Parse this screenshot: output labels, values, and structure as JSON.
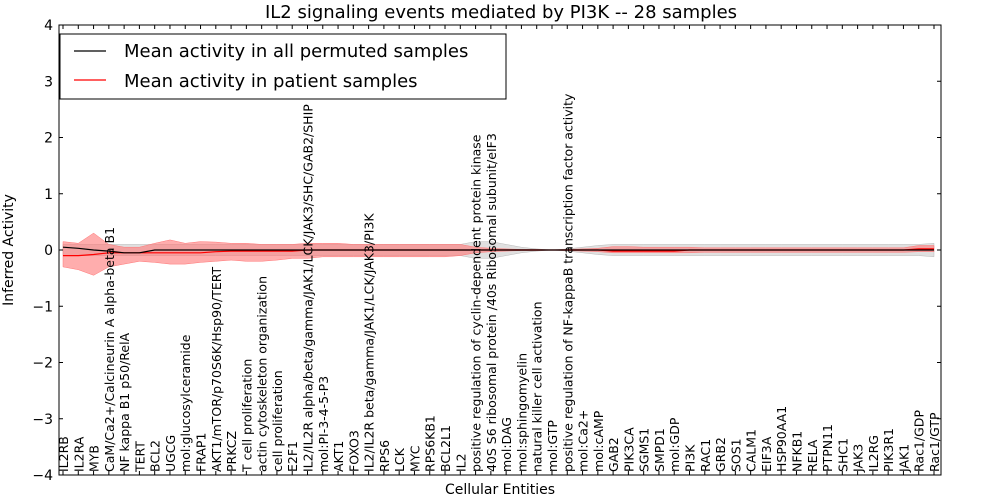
{
  "chart_data": {
    "type": "line",
    "title": "IL2 signaling events mediated by PI3K -- 28 samples",
    "xlabel": "Cellular Entities",
    "ylabel": "Inferred Activity",
    "ylim": [
      -4,
      4
    ],
    "yticks": [
      -4,
      -3,
      -2,
      -1,
      0,
      1,
      2,
      3,
      4
    ],
    "ytick_labels": [
      "−4",
      "−3",
      "−2",
      "−1",
      "0",
      "1",
      "2",
      "3",
      "4"
    ],
    "legend_position": "upper-left",
    "categories": [
      "IL2RB",
      "IL2RA",
      "MYB",
      "CaM/Ca2+/Calcineurin A alpha-beta B1",
      "NF kappa B1 p50/RelA",
      "TERT",
      "BCL2",
      "UGCG",
      "mol:glucosylceramide",
      "FRAP1",
      "AKT1/mTOR/p70S6K/Hsp90/TERT",
      "PRKCZ",
      "T cell proliferation",
      "actin cytoskeleton organization",
      "cell proliferation",
      "E2F1",
      "IL2/IL2R alpha/beta/gamma/JAK1/LCK/JAK3/SHC/GAB2/SHIP",
      "mol:PI-3-4-5-P3",
      "AKT1",
      "FOXO3",
      "IL2/IL2R beta/gamma/JAK1/LCK/JAK3/PI3K",
      "RPS6",
      "LCK",
      "MYC",
      "RPS6KB1",
      "BCL2L1",
      "IL2",
      "positive regulation of cyclin-dependent protein kinase",
      "40S S6 ribosomal protein /40s Ribosomal subunit/eIF3",
      "mol:DAG",
      "mol:sphingomyelin",
      "natural killer cell activation",
      "mol:GTP",
      "positive regulation of NF-kappaB transcription factor activity",
      "mol:Ca2+",
      "mol:cAMP",
      "GAB2",
      "PIK3CA",
      "SGMS1",
      "SMPD1",
      "mol:GDP",
      "PI3K",
      "RAC1",
      "GRB2",
      "SOS1",
      "CALM1",
      "EIF3A",
      "HSP90AA1",
      "NFKB1",
      "RELA",
      "PTPN11",
      "SHC1",
      "JAK3",
      "IL2RG",
      "PIK3R1",
      "JAK1",
      "Rac1/GDP",
      "Rac1/GTP"
    ],
    "series": [
      {
        "name": "Mean activity in all permuted samples",
        "color": "#000000",
        "values": [
          0.05,
          0.03,
          0.0,
          -0.02,
          -0.05,
          -0.05,
          0.0,
          0.0,
          0.0,
          0.0,
          0.0,
          0.0,
          0.0,
          0.0,
          0.0,
          0.0,
          0.0,
          0.0,
          0.0,
          0.0,
          0.0,
          0.0,
          0.0,
          0.0,
          0.0,
          0.0,
          0.0,
          0.0,
          0.0,
          0.0,
          0.0,
          0.0,
          0.0,
          0.0,
          0.0,
          0.0,
          0.0,
          0.0,
          0.0,
          0.0,
          0.0,
          0.0,
          0.0,
          0.0,
          0.0,
          0.0,
          0.0,
          0.0,
          0.0,
          0.0,
          0.0,
          0.0,
          0.0,
          0.0,
          0.0,
          0.0,
          0.0,
          0.0
        ],
        "band_lower": [
          -0.1,
          -0.1,
          -0.1,
          -0.1,
          -0.1,
          -0.1,
          -0.1,
          -0.1,
          -0.1,
          -0.1,
          -0.1,
          -0.1,
          -0.1,
          -0.1,
          -0.1,
          -0.1,
          -0.1,
          -0.1,
          -0.1,
          -0.1,
          -0.1,
          -0.1,
          -0.1,
          -0.1,
          -0.1,
          -0.1,
          -0.1,
          -0.15,
          -0.15,
          -0.1,
          -0.05,
          -0.02,
          0.0,
          -0.02,
          -0.05,
          -0.08,
          -0.1,
          -0.1,
          -0.1,
          -0.1,
          -0.1,
          -0.1,
          -0.1,
          -0.1,
          -0.1,
          -0.1,
          -0.1,
          -0.1,
          -0.1,
          -0.1,
          -0.1,
          -0.1,
          -0.1,
          -0.1,
          -0.1,
          -0.1,
          -0.1,
          -0.12
        ],
        "band_upper": [
          0.1,
          0.1,
          0.1,
          0.1,
          0.1,
          0.1,
          0.1,
          0.1,
          0.1,
          0.1,
          0.1,
          0.1,
          0.1,
          0.1,
          0.1,
          0.1,
          0.1,
          0.1,
          0.1,
          0.1,
          0.1,
          0.1,
          0.1,
          0.1,
          0.1,
          0.1,
          0.1,
          0.15,
          0.15,
          0.1,
          0.05,
          0.02,
          0.0,
          0.02,
          0.05,
          0.08,
          0.1,
          0.1,
          0.1,
          0.1,
          0.1,
          0.1,
          0.1,
          0.1,
          0.1,
          0.1,
          0.1,
          0.1,
          0.1,
          0.1,
          0.1,
          0.1,
          0.1,
          0.1,
          0.1,
          0.1,
          0.1,
          0.12
        ],
        "band_color": "#bbbbbb"
      },
      {
        "name": "Mean activity in patient samples",
        "color": "#ff0000",
        "values": [
          -0.1,
          -0.1,
          -0.08,
          -0.05,
          -0.05,
          -0.05,
          -0.05,
          -0.05,
          -0.05,
          -0.05,
          -0.03,
          -0.02,
          -0.02,
          -0.02,
          -0.02,
          -0.02,
          0.0,
          0.0,
          0.0,
          0.0,
          0.0,
          0.0,
          0.0,
          0.0,
          0.0,
          0.0,
          0.0,
          0.0,
          0.0,
          0.0,
          0.0,
          0.0,
          0.0,
          0.0,
          0.0,
          0.0,
          -0.02,
          -0.02,
          -0.02,
          -0.02,
          -0.02,
          0.0,
          0.0,
          0.0,
          0.0,
          0.0,
          0.0,
          0.0,
          0.0,
          0.0,
          0.0,
          0.0,
          0.0,
          0.0,
          0.0,
          0.0,
          0.02,
          0.02
        ],
        "band_lower": [
          -0.3,
          -0.35,
          -0.45,
          -0.3,
          -0.25,
          -0.2,
          -0.22,
          -0.25,
          -0.25,
          -0.22,
          -0.2,
          -0.18,
          -0.2,
          -0.2,
          -0.18,
          -0.15,
          -0.15,
          -0.12,
          -0.12,
          -0.12,
          -0.12,
          -0.12,
          -0.12,
          -0.12,
          -0.12,
          -0.12,
          -0.1,
          -0.05,
          -0.03,
          -0.02,
          -0.01,
          -0.01,
          0.0,
          -0.01,
          -0.02,
          -0.03,
          -0.05,
          -0.05,
          -0.05,
          -0.05,
          -0.05,
          -0.05,
          -0.04,
          -0.04,
          -0.04,
          -0.04,
          -0.04,
          -0.04,
          -0.04,
          -0.04,
          -0.04,
          -0.04,
          -0.04,
          -0.04,
          -0.04,
          -0.04,
          -0.03,
          -0.03
        ],
        "band_upper": [
          0.15,
          0.12,
          0.3,
          0.1,
          0.05,
          0.05,
          0.12,
          0.18,
          0.12,
          0.15,
          0.14,
          0.12,
          0.12,
          0.1,
          0.1,
          0.1,
          0.12,
          0.12,
          0.12,
          0.1,
          0.1,
          0.1,
          0.1,
          0.1,
          0.1,
          0.1,
          0.1,
          0.05,
          0.03,
          0.02,
          0.01,
          0.01,
          0.0,
          0.01,
          0.02,
          0.03,
          0.06,
          0.06,
          0.05,
          0.05,
          0.05,
          0.05,
          0.04,
          0.04,
          0.04,
          0.04,
          0.04,
          0.04,
          0.04,
          0.04,
          0.04,
          0.04,
          0.04,
          0.04,
          0.04,
          0.04,
          0.08,
          0.08
        ],
        "band_color": "#ff7777"
      }
    ]
  }
}
